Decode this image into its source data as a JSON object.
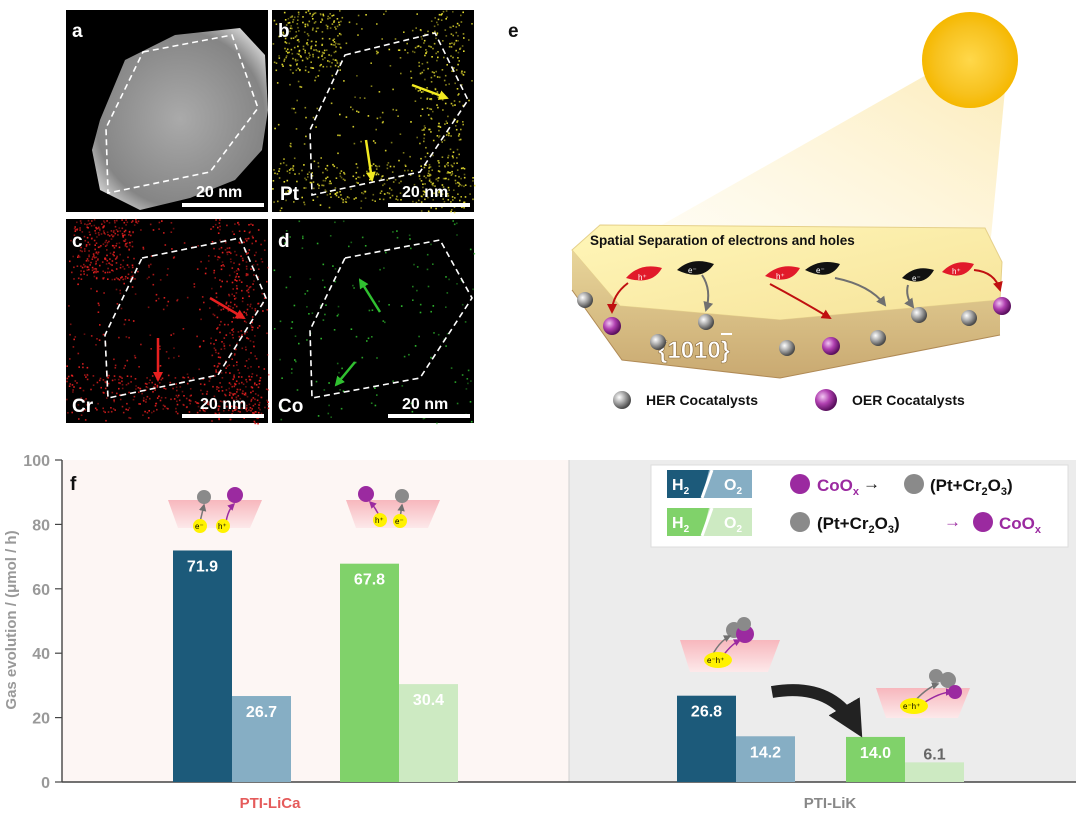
{
  "panels": {
    "a": {
      "letter": "a",
      "scale": "20 nm",
      "element": ""
    },
    "b": {
      "letter": "b",
      "scale": "20 nm",
      "element": "Pt"
    },
    "c": {
      "letter": "c",
      "scale": "20 nm",
      "element": "Cr"
    },
    "d": {
      "letter": "d",
      "scale": "20 nm",
      "element": "Co"
    },
    "e": {
      "letter": "e",
      "heading": "Spatial Separation of electrons and holes",
      "facet": "{1010}",
      "legend_her": "HER Cocatalysts",
      "legend_oer": "OER Cocatalysts"
    },
    "f": {
      "letter": "f"
    }
  },
  "colors": {
    "h2_dark": "#1c5a7a",
    "o2_dark": "#86aec4",
    "h2_green": "#80d26a",
    "o2_green": "#cdeac2",
    "pt": "#e8e030",
    "cr": "#e82020",
    "co": "#30c030",
    "oer": "#9b2aa0",
    "her": "#8a8a8a",
    "category_red": "#e55b5b"
  },
  "legend_f": {
    "h2": "H2",
    "o2": "O2",
    "row1": "CoOx → (Pt+Cr2O3)",
    "row2": "(Pt+Cr2O3) → CoOx"
  },
  "chart_data": {
    "type": "bar",
    "ylabel": "Gas evolution / (μmol / h)",
    "ylim": [
      0,
      100
    ],
    "yticks": [
      0,
      20,
      40,
      60,
      80,
      100
    ],
    "categories": [
      "PTI-LiCa",
      "PTI-LiK"
    ],
    "groups": [
      {
        "category": "PTI-LiCa",
        "order": "CoOx → (Pt+Cr2O3)",
        "h2": 71.9,
        "o2": 26.7
      },
      {
        "category": "PTI-LiCa",
        "order": "(Pt+Cr2O3) → CoOx",
        "h2": 67.8,
        "o2": 30.4
      },
      {
        "category": "PTI-LiK",
        "order": "CoOx → (Pt+Cr2O3)",
        "h2": 26.8,
        "o2": 14.2
      },
      {
        "category": "PTI-LiK",
        "order": "(Pt+Cr2O3) → CoOx",
        "h2": 14.0,
        "o2": 6.1
      }
    ],
    "labels": [
      "71.9",
      "26.7",
      "67.8",
      "30.4",
      "26.8",
      "14.2",
      "14.0",
      "6.1"
    ]
  }
}
